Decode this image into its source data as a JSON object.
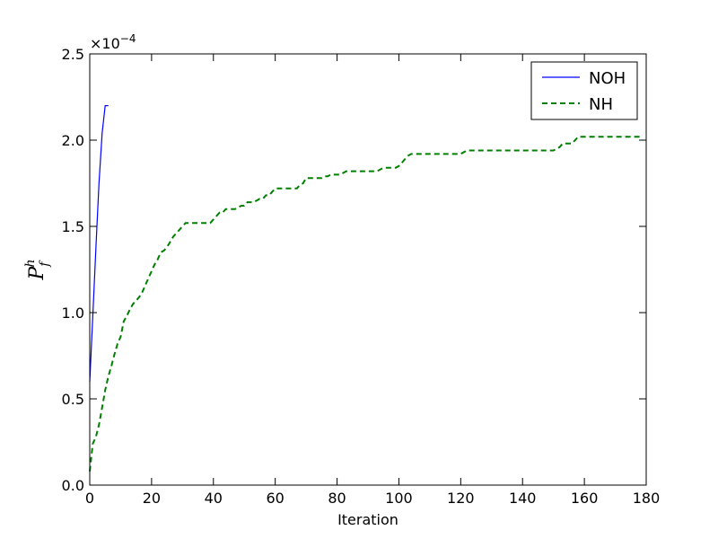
{
  "chart_data": {
    "type": "line",
    "title": "",
    "xlabel": "Iteration",
    "ylabel_base": "P",
    "ylabel_sub": "f",
    "ylabel_sup": "h",
    "scale_multiplier": "×10",
    "scale_exponent": "−4",
    "xlim": [
      0,
      180
    ],
    "ylim": [
      0,
      2.5
    ],
    "xticks": [
      "0",
      "20",
      "40",
      "60",
      "80",
      "100",
      "120",
      "140",
      "160",
      "180"
    ],
    "yticks": [
      "0.0",
      "0.5",
      "1.0",
      "1.5",
      "2.0",
      "2.5"
    ],
    "legend_position": "top-right",
    "grid": false,
    "series": [
      {
        "name": "NOH",
        "color": "#0000ff",
        "style": "solid",
        "x": [
          0,
          1,
          2,
          3,
          4,
          5,
          6
        ],
        "y": [
          0.6,
          0.98,
          1.38,
          1.75,
          2.04,
          2.2,
          2.2
        ]
      },
      {
        "name": "NH",
        "color": "#008000",
        "style": "dashed",
        "x": [
          0,
          1,
          2,
          3,
          4,
          5,
          6,
          7,
          8,
          9,
          10,
          11,
          12,
          13,
          14,
          15,
          16,
          17,
          18,
          19,
          20,
          21,
          22,
          23,
          24,
          25,
          26,
          27,
          28,
          29,
          30,
          31,
          35,
          38,
          39,
          40,
          41,
          42,
          43,
          44,
          45,
          46,
          47,
          48,
          49,
          50,
          51,
          52,
          53,
          54,
          55,
          56,
          57,
          58,
          59,
          60,
          61,
          62,
          63,
          64,
          65,
          66,
          67,
          68,
          69,
          70,
          71,
          72,
          73,
          74,
          75,
          76,
          77,
          78,
          79,
          80,
          81,
          82,
          83,
          84,
          85,
          90,
          93,
          94,
          95,
          96,
          97,
          98,
          99,
          100,
          101,
          102,
          103,
          104,
          110,
          115,
          120,
          121,
          122,
          125,
          130,
          140,
          150,
          151,
          152,
          153,
          154,
          155,
          156,
          157,
          158,
          160,
          170,
          178
        ],
        "y": [
          0.08,
          0.24,
          0.28,
          0.35,
          0.45,
          0.55,
          0.63,
          0.69,
          0.76,
          0.82,
          0.86,
          0.95,
          0.98,
          1.02,
          1.05,
          1.07,
          1.09,
          1.12,
          1.16,
          1.2,
          1.24,
          1.28,
          1.31,
          1.35,
          1.36,
          1.38,
          1.41,
          1.44,
          1.46,
          1.48,
          1.5,
          1.52,
          1.52,
          1.52,
          1.52,
          1.54,
          1.56,
          1.58,
          1.58,
          1.6,
          1.6,
          1.6,
          1.6,
          1.61,
          1.62,
          1.62,
          1.64,
          1.64,
          1.64,
          1.65,
          1.66,
          1.66,
          1.68,
          1.68,
          1.7,
          1.72,
          1.72,
          1.72,
          1.72,
          1.72,
          1.72,
          1.72,
          1.72,
          1.74,
          1.75,
          1.78,
          1.78,
          1.78,
          1.78,
          1.78,
          1.78,
          1.79,
          1.79,
          1.8,
          1.8,
          1.8,
          1.8,
          1.81,
          1.82,
          1.82,
          1.82,
          1.82,
          1.82,
          1.83,
          1.84,
          1.84,
          1.84,
          1.84,
          1.84,
          1.85,
          1.87,
          1.89,
          1.91,
          1.92,
          1.92,
          1.92,
          1.92,
          1.93,
          1.94,
          1.94,
          1.94,
          1.94,
          1.94,
          1.95,
          1.96,
          1.98,
          1.98,
          1.98,
          1.98,
          2.0,
          2.02,
          2.02,
          2.02,
          2.02
        ]
      }
    ]
  }
}
